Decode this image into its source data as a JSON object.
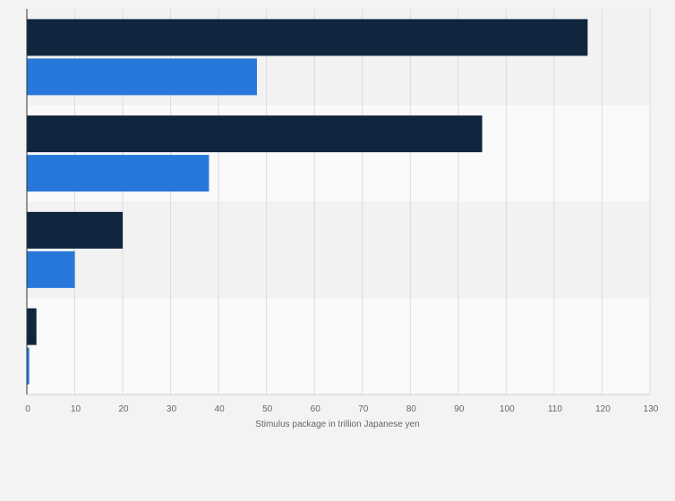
{
  "chart_data": {
    "type": "bar",
    "orientation": "horizontal",
    "categories": [
      "",
      "",
      "",
      ""
    ],
    "series": [
      {
        "color": "#10263f",
        "values": [
          117,
          95,
          20,
          2
        ]
      },
      {
        "color": "#2878dc",
        "values": [
          48,
          38,
          10,
          0.5
        ]
      }
    ],
    "xlabel": "Stimulus package in trillion Japanese yen",
    "xlim": [
      0,
      130
    ],
    "xticks": [
      0,
      10,
      20,
      30,
      40,
      50,
      60,
      70,
      80,
      90,
      100,
      110,
      120,
      130
    ],
    "grid": true,
    "legend": "none"
  },
  "colors": {
    "background": "#f3f3f3",
    "band_dark": "#f2f2f2",
    "band_light": "#fafafa",
    "gridline": "#dcdcdc",
    "axis": "#333333",
    "tick_text": "#666666"
  }
}
